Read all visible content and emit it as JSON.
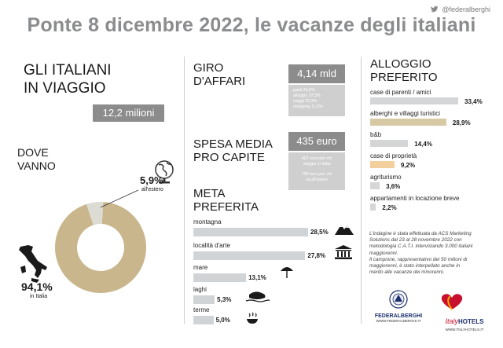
{
  "header": {
    "handle": "@federalberghi",
    "title": "Ponte 8 dicembre 2022, le vacanze degli italiani"
  },
  "travel": {
    "heading_line1": "GLI ITALIANI",
    "heading_line2": "IN VIAGGIO",
    "total": "12,2 milioni"
  },
  "where": {
    "heading_line1": "DOVE",
    "heading_line2": "VANNO",
    "abroad_pct": "5,9%",
    "abroad_label": "all'estero",
    "italy_pct": "94,1%",
    "italy_label": "in Italia",
    "abroad_value": 5.9,
    "italy_value": 94.1,
    "colors": {
      "italy": "#c9b68c",
      "abroad": "#dcdcd4"
    }
  },
  "business": {
    "heading_line1": "GIRO",
    "heading_line2": "D'AFFARI",
    "total": "4,14 mld",
    "details": [
      "pasti 29,6%",
      "alloggio 37,5%",
      "viaggi 22,3%",
      "shopping 11,5%"
    ]
  },
  "spend": {
    "heading_line1": "SPESA MEDIA",
    "heading_line2": "PRO CAPITE",
    "total": "435 euro",
    "note1_line1": "407 euro per chi",
    "note1_line2": "viaggia in Italia",
    "note2_line1": "795 euro per chi",
    "note2_line2": "va all'estero"
  },
  "destination": {
    "heading_line1": "META",
    "heading_line2": "PREFERITA",
    "items": [
      {
        "label": "montagna",
        "value": "28,5%",
        "num": 28.5
      },
      {
        "label": "località d'arte",
        "value": "27,8%",
        "num": 27.8
      },
      {
        "label": "mare",
        "value": "13,1%",
        "num": 13.1
      },
      {
        "label": "laghi",
        "value": "5,3%",
        "num": 5.3
      },
      {
        "label": "terme",
        "value": "5,0%",
        "num": 5.0
      }
    ]
  },
  "lodging": {
    "heading_line1": "ALLOGGIO",
    "heading_line2": "PREFERITO",
    "items": [
      {
        "label": "case di parenti / amici",
        "value": "33,4%",
        "num": 33.4,
        "color": "#d4d6d8"
      },
      {
        "label": "alberghi e villaggi turistici",
        "value": "28,9%",
        "num": 28.9,
        "color": "#d6c9a4"
      },
      {
        "label": "b&b",
        "value": "14,4%",
        "num": 14.4,
        "color": "#d4d6d8"
      },
      {
        "label": "case di proprietà",
        "value": "9,2%",
        "num": 9.2,
        "color": "#f2cf9c"
      },
      {
        "label": "agriturismo",
        "value": "3,6%",
        "num": 3.6,
        "color": "#d4d6d8"
      },
      {
        "label": "appartamenti in locazione breve",
        "value": "2,2%",
        "num": 2.2,
        "color": "#d4d6d8"
      }
    ]
  },
  "footnote": {
    "line1": "L'indagine è stata effettuata da ACS Marketing",
    "line2": "Solutions dal 23 al 28 novembre 2022  con",
    "line3": "metodologia C.A.T.I. intervistando 3.000 italiani",
    "line4": "maggiorenni.",
    "line5": "Il campione, rappresentativo dei 50 milioni di",
    "line6": "maggiorenni, è stato interpellato anche in",
    "line7": "merito alle vacanze dei minorenni."
  },
  "logos": {
    "federalberghi": "FEDERALBERGHI",
    "federalberghi_url": "WWW.FEDERALBERGHI.IT",
    "italyhotels_italy": "Italy",
    "italyhotels_hotels": "HOTELS",
    "italyhotels_url": "WWW.ITALYHOTELS.IT"
  }
}
